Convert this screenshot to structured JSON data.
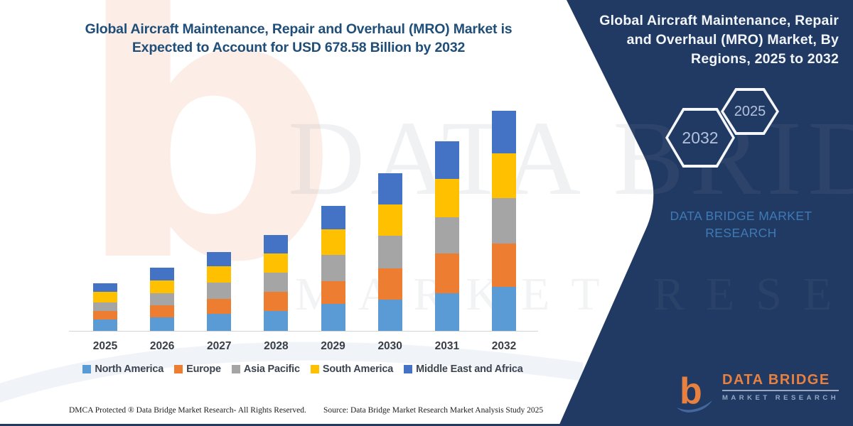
{
  "main": {
    "title_line1": "Global Aircraft Maintenance, Repair and Overhaul (MRO) Market is",
    "title_line2": "Expected to Account for USD 678.58 Billion by 2032"
  },
  "panel": {
    "bg_color": "#213A63",
    "title_line1": "Global Aircraft Maintenance, Repair",
    "title_line2": "and Overhaul (MRO) Market, By",
    "title_line3": "Regions, 2025 to 2032",
    "hex_left_label": "2032",
    "hex_right_label": "2025",
    "brand_line1": "DATA BRIDGE MARKET",
    "brand_line2": "RESEARCH"
  },
  "chart_data": {
    "type": "bar",
    "stacked": true,
    "unit": "USD Billion",
    "title": "Global Aircraft Maintenance, Repair and Overhaul (MRO) Market, By Regions, 2025 to 2032",
    "categories": [
      "2025",
      "2026",
      "2027",
      "2028",
      "2029",
      "2030",
      "2031",
      "2032"
    ],
    "series": [
      {
        "name": "North America",
        "color": "#5B9BD5",
        "values": [
          35,
          42,
          53,
          61,
          83,
          96,
          116,
          135.7
        ]
      },
      {
        "name": "Europe",
        "color": "#ED7D31",
        "values": [
          26,
          37,
          46,
          59,
          70,
          96,
          123,
          132.9
        ]
      },
      {
        "name": "Asia Pacific",
        "color": "#A5A5A5",
        "values": [
          26,
          37,
          50,
          59,
          81,
          101,
          112,
          140.1
        ]
      },
      {
        "name": "South America",
        "color": "#FFC000",
        "values": [
          33,
          39,
          50,
          59,
          79,
          96,
          118,
          138.6
        ]
      },
      {
        "name": "Middle East and Africa",
        "color": "#4472C4",
        "values": [
          26,
          39,
          44,
          57,
          72,
          96,
          116,
          131.3
        ]
      }
    ],
    "totals_estimated": [
      146,
      194,
      243,
      295,
      385,
      485,
      585,
      678.58
    ],
    "stated_value_2032_total_billion": 678.58,
    "values_estimated": true,
    "ylim": [
      0,
      700
    ],
    "grid": false,
    "y_axis_shown": false,
    "legend_position": "bottom"
  },
  "footer": {
    "dmca": "DMCA Protected ® Data Bridge Market Research-  All Rights Reserved.",
    "source": "Source: Data Bridge Market Research  Market Analysis Study 2025"
  },
  "logo": {
    "line1": "DATA BRIDGE",
    "line2": "MARKET RESEARCH",
    "orange": "#E8803F",
    "blue": "#44689D"
  },
  "watermarks": {
    "letter": "b",
    "text_large": "DATA BRIDGE",
    "text_small": "MARKET RESEARCH"
  }
}
